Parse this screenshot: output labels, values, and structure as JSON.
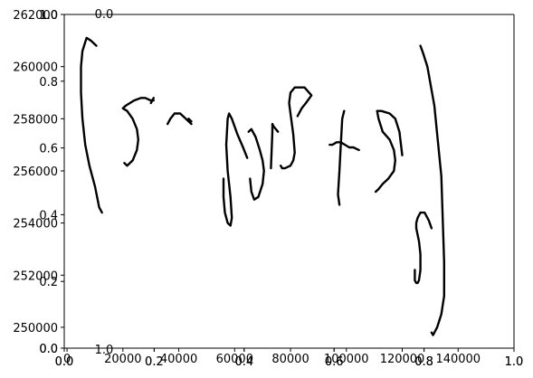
{
  "chart_data": {
    "type": "line",
    "title": "",
    "xlabel": "",
    "ylabel": "",
    "grid": false,
    "legend": "none",
    "line_color": "#000000",
    "axes": [
      {
        "name": "data-axes",
        "xlim": [
          -1000,
          160000
        ],
        "ylim": [
          249200,
          262000
        ],
        "xticks": [
          0,
          20000,
          40000,
          60000,
          80000,
          100000,
          120000,
          140000
        ],
        "xtick_labels": [
          "0",
          "20000",
          "40000",
          "60000",
          "80000",
          "100000",
          "120000",
          "140000"
        ],
        "yticks": [
          250000,
          252000,
          254000,
          256000,
          258000,
          260000,
          262000
        ],
        "ytick_labels": [
          "250000",
          "252000",
          "254000",
          "256000",
          "258000",
          "260000",
          "262000"
        ]
      },
      {
        "name": "overlay-axes-a",
        "xlim": [
          0,
          1
        ],
        "ylim": [
          0,
          1
        ],
        "xticks": [
          0,
          0.2,
          0.4,
          0.6,
          0.8,
          1.0
        ],
        "xtick_labels": [
          "0.0",
          "0.2",
          "0.4",
          "0.6",
          "0.8",
          "1.0"
        ],
        "yticks": [
          0,
          0.2,
          0.4,
          0.6,
          0.8,
          1.0
        ],
        "ytick_labels": [
          "0.0",
          "0.2",
          "0.4",
          "0.6",
          "0.8",
          "1.0"
        ]
      },
      {
        "name": "overlay-axes-b",
        "xlim": [
          0,
          1
        ],
        "ylim": [
          0,
          1
        ],
        "xticks": [
          0,
          0.2,
          0.4,
          0.6,
          0.8,
          1.0
        ],
        "xtick_labels": [
          "0.0",
          "0.2",
          "0.4",
          "0.6",
          "0.8",
          "1.0"
        ],
        "yticks": [
          0,
          1.0
        ],
        "ytick_labels": [
          "0.0",
          "1.0"
        ]
      }
    ],
    "strokes": [
      {
        "name": "left-bracket",
        "points": [
          [
            12500,
            254400
          ],
          [
            11500,
            254600
          ],
          [
            10000,
            255400
          ],
          [
            8000,
            256200
          ],
          [
            6500,
            257000
          ],
          [
            5500,
            258000
          ],
          [
            5000,
            259000
          ],
          [
            5000,
            260000
          ],
          [
            5500,
            260600
          ],
          [
            7000,
            261100
          ],
          [
            8500,
            261000
          ],
          [
            10500,
            260800
          ]
        ]
      },
      {
        "name": "mark-5a",
        "points": [
          [
            20500,
            256300
          ],
          [
            21500,
            256200
          ],
          [
            23500,
            256400
          ],
          [
            25000,
            256800
          ],
          [
            25500,
            257200
          ],
          [
            25000,
            257600
          ],
          [
            23500,
            258000
          ],
          [
            21500,
            258300
          ],
          [
            20000,
            258400
          ],
          [
            21000,
            258500
          ],
          [
            24000,
            258700
          ],
          [
            26500,
            258800
          ],
          [
            28000,
            258800
          ],
          [
            30000,
            258700
          ],
          [
            31000,
            258700
          ]
        ]
      },
      {
        "name": "mark-5b",
        "points": [
          [
            30000,
            258600
          ],
          [
            31000,
            258800
          ]
        ]
      },
      {
        "name": "mark-tilde",
        "points": [
          [
            36000,
            257800
          ],
          [
            37000,
            258000
          ],
          [
            38500,
            258200
          ],
          [
            40500,
            258200
          ],
          [
            42500,
            258000
          ],
          [
            44500,
            257800
          ]
        ]
      },
      {
        "name": "mark-tilde-end",
        "points": [
          [
            43500,
            258000
          ],
          [
            44500,
            257900
          ]
        ]
      },
      {
        "name": "mark-p-stem",
        "points": [
          [
            64500,
            256500
          ],
          [
            63000,
            256900
          ],
          [
            61000,
            257400
          ],
          [
            59000,
            258000
          ],
          [
            58000,
            258200
          ],
          [
            57500,
            258000
          ],
          [
            57000,
            257000
          ],
          [
            57500,
            256000
          ],
          [
            58500,
            255000
          ],
          [
            59000,
            254200
          ],
          [
            58500,
            253900
          ],
          [
            57500,
            254000
          ],
          [
            56500,
            254400
          ],
          [
            56000,
            255000
          ],
          [
            56000,
            255700
          ]
        ]
      },
      {
        "name": "mark-o",
        "points": [
          [
            65500,
            255700
          ],
          [
            66000,
            255200
          ],
          [
            67000,
            254900
          ],
          [
            68500,
            255000
          ],
          [
            70000,
            255500
          ],
          [
            70500,
            256000
          ],
          [
            70000,
            256400
          ],
          [
            69000,
            256800
          ],
          [
            67500,
            257300
          ],
          [
            66000,
            257600
          ],
          [
            65000,
            257500
          ]
        ]
      },
      {
        "name": "mark-s-left",
        "points": [
          [
            73000,
            256100
          ],
          [
            73500,
            257500
          ],
          [
            73500,
            257800
          ],
          [
            74000,
            257700
          ],
          [
            75500,
            257500
          ]
        ]
      },
      {
        "name": "mark-s",
        "points": [
          [
            82500,
            258100
          ],
          [
            84000,
            258400
          ],
          [
            85500,
            258600
          ],
          [
            87500,
            258900
          ],
          [
            85000,
            259200
          ],
          [
            81500,
            259200
          ],
          [
            80000,
            259000
          ],
          [
            79500,
            258600
          ],
          [
            80000,
            258200
          ],
          [
            81000,
            257400
          ],
          [
            81500,
            256700
          ],
          [
            81000,
            256400
          ],
          [
            80000,
            256200
          ],
          [
            78000,
            256100
          ],
          [
            77000,
            256100
          ],
          [
            76500,
            256200
          ]
        ]
      },
      {
        "name": "mark-t-stem",
        "points": [
          [
            99200,
            258300
          ],
          [
            98500,
            258000
          ],
          [
            98000,
            257000
          ],
          [
            97500,
            256000
          ],
          [
            97000,
            255100
          ],
          [
            97500,
            254700
          ]
        ]
      },
      {
        "name": "mark-t-bar",
        "points": [
          [
            94000,
            257000
          ],
          [
            95000,
            257000
          ],
          [
            96500,
            257100
          ],
          [
            98000,
            257100
          ],
          [
            99500,
            257000
          ],
          [
            101000,
            256900
          ],
          [
            102500,
            256900
          ],
          [
            104500,
            256800
          ]
        ]
      },
      {
        "name": "mark-3",
        "points": [
          [
            110500,
            255200
          ],
          [
            111500,
            255300
          ],
          [
            113000,
            255500
          ],
          [
            115000,
            255700
          ],
          [
            117000,
            256000
          ],
          [
            117500,
            256400
          ],
          [
            117000,
            256800
          ],
          [
            115500,
            257200
          ],
          [
            113000,
            257500
          ],
          [
            111500,
            258000
          ],
          [
            111000,
            258300
          ],
          [
            112500,
            258300
          ],
          [
            115500,
            258200
          ],
          [
            117500,
            258000
          ],
          [
            119000,
            257500
          ],
          [
            120000,
            256600
          ]
        ]
      },
      {
        "name": "mark-g",
        "points": [
          [
            130500,
            253800
          ],
          [
            129500,
            254100
          ],
          [
            128000,
            254400
          ],
          [
            126500,
            254400
          ],
          [
            125500,
            254200
          ],
          [
            125000,
            254000
          ],
          [
            125000,
            253800
          ],
          [
            126000,
            253300
          ],
          [
            126500,
            252800
          ],
          [
            126500,
            252200
          ],
          [
            126000,
            251800
          ],
          [
            125500,
            251700
          ],
          [
            125000,
            251700
          ],
          [
            124500,
            251800
          ],
          [
            124500,
            252200
          ]
        ]
      },
      {
        "name": "right-bracket",
        "points": [
          [
            126500,
            260800
          ],
          [
            127500,
            260500
          ],
          [
            129000,
            260000
          ],
          [
            131500,
            258500
          ],
          [
            134000,
            255800
          ],
          [
            135000,
            252500
          ],
          [
            135000,
            251200
          ],
          [
            134000,
            250500
          ],
          [
            132500,
            250000
          ],
          [
            131000,
            249700
          ],
          [
            130500,
            249800
          ]
        ]
      }
    ]
  }
}
